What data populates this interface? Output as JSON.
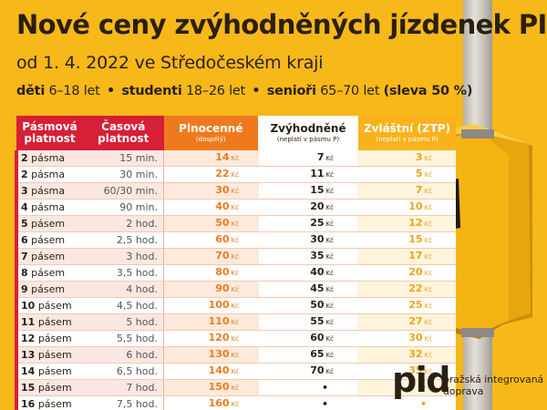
{
  "title": "Nové ceny zvýhodněných jízdenek PID",
  "subtitle": "od 1. 4. 2022 ve Středočeském kraji",
  "groups": {
    "g1_name": "děti",
    "g1_age": "6–18 let",
    "bullet": "•",
    "g2_name": "studenti",
    "g2_age": "18–26 let",
    "g3_name": "senioři",
    "g3_age": "65–70 let",
    "discount": "(sleva 50 %)"
  },
  "table": {
    "headers": {
      "zone": "Pásmová platnost",
      "time": "Časová platnost",
      "full": "Plnocenné",
      "full_note": "(dospělý)",
      "disc": "Zvýhodněné",
      "disc_note": "(neplatí v pásmu P)",
      "ztp": "Zvláštní (ZTP)",
      "ztp_note": "(neplatí v pásmu P)"
    },
    "currency": "Kč",
    "rows": [
      {
        "zones": "2",
        "zone_word": "pásma",
        "time": "15 min.",
        "full": "14",
        "disc": "7",
        "ztp": "3"
      },
      {
        "zones": "2",
        "zone_word": "pásma",
        "time": "30 min.",
        "full": "22",
        "disc": "11",
        "ztp": "5"
      },
      {
        "zones": "3",
        "zone_word": "pásma",
        "time": "60/30 min.",
        "full": "30",
        "disc": "15",
        "ztp": "7"
      },
      {
        "zones": "4",
        "zone_word": "pásma",
        "time": "90 min.",
        "full": "40",
        "disc": "20",
        "ztp": "10"
      },
      {
        "zones": "5",
        "zone_word": "pásem",
        "time": "2 hod.",
        "full": "50",
        "disc": "25",
        "ztp": "12"
      },
      {
        "zones": "6",
        "zone_word": "pásem",
        "time": "2,5 hod.",
        "full": "60",
        "disc": "30",
        "ztp": "15"
      },
      {
        "zones": "7",
        "zone_word": "pásem",
        "time": "3 hod.",
        "full": "70",
        "disc": "35",
        "ztp": "17"
      },
      {
        "zones": "8",
        "zone_word": "pásem",
        "time": "3,5 hod.",
        "full": "80",
        "disc": "40",
        "ztp": "20"
      },
      {
        "zones": "9",
        "zone_word": "pásem",
        "time": "4 hod.",
        "full": "90",
        "disc": "45",
        "ztp": "22"
      },
      {
        "zones": "10",
        "zone_word": "pásem",
        "time": "4,5 hod.",
        "full": "100",
        "disc": "50",
        "ztp": "25"
      },
      {
        "zones": "11",
        "zone_word": "pásem",
        "time": "5 hod.",
        "full": "110",
        "disc": "55",
        "ztp": "27"
      },
      {
        "zones": "12",
        "zone_word": "pásem",
        "time": "5,5 hod.",
        "full": "120",
        "disc": "60",
        "ztp": "30"
      },
      {
        "zones": "13",
        "zone_word": "pásem",
        "time": "6 hod.",
        "full": "130",
        "disc": "65",
        "ztp": "32"
      },
      {
        "zones": "14",
        "zone_word": "pásem",
        "time": "6,5 hod.",
        "full": "140",
        "disc": "70",
        "ztp": "35"
      },
      {
        "zones": "15",
        "zone_word": "pásem",
        "time": "7 hod.",
        "full": "150",
        "disc": "•",
        "ztp": "•"
      },
      {
        "zones": "16",
        "zone_word": "pásem",
        "time": "7,5 hod.",
        "full": "160",
        "disc": "•",
        "ztp": "•"
      }
    ]
  },
  "logo": {
    "mark": "pid",
    "text": "pražská integrovaná\ndoprava"
  },
  "colors": {
    "background": "#f7b81a",
    "red": "#d71f35",
    "orange": "#ef7a1e",
    "yellow": "#f9b21b",
    "validator": "#f5b414"
  },
  "icons": [
    "ticket-validator-icon",
    "ticket-slot-icon"
  ]
}
